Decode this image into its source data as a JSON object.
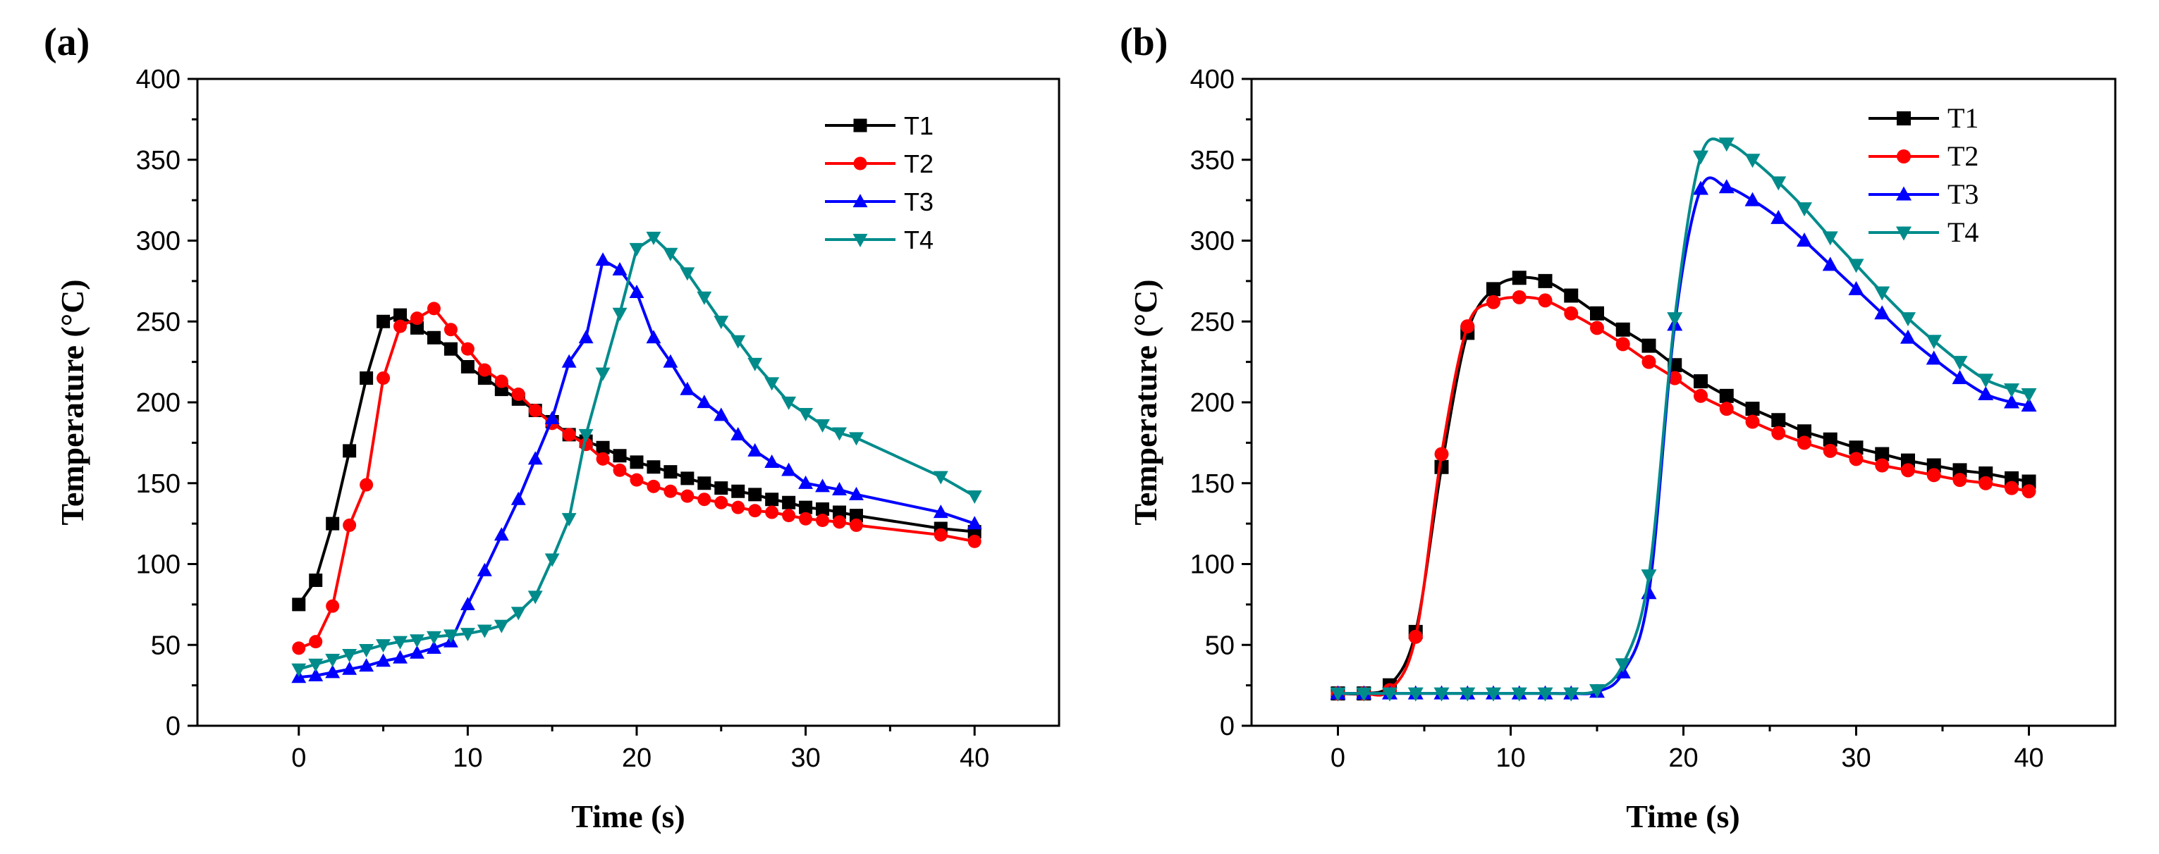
{
  "chart_data": [
    {
      "type": "line",
      "panel": "(a)",
      "xlabel": "Time (s)",
      "ylabel": "Temperature (°C)",
      "xlim": [
        -6,
        45
      ],
      "ylim": [
        0,
        400
      ],
      "xticks": [
        0,
        10,
        20,
        30,
        40
      ],
      "yticks": [
        0,
        50,
        100,
        150,
        200,
        250,
        300,
        350,
        400
      ],
      "legend": "top-right",
      "series": [
        {
          "name": "T1",
          "color": "#000000",
          "marker": "square",
          "x": [
            0,
            1,
            2,
            3,
            4,
            5,
            6,
            7,
            8,
            9,
            10,
            11,
            12,
            13,
            14,
            15,
            16,
            17,
            18,
            19,
            20,
            21,
            22,
            23,
            24,
            25,
            26,
            27,
            28,
            29,
            30,
            31,
            32,
            33,
            38,
            40
          ],
          "y": [
            75,
            90,
            125,
            170,
            215,
            250,
            254,
            246,
            240,
            233,
            222,
            215,
            208,
            202,
            195,
            188,
            180,
            176,
            172,
            167,
            163,
            160,
            157,
            153,
            150,
            147,
            145,
            143,
            140,
            138,
            135,
            134,
            132,
            130,
            122,
            120
          ]
        },
        {
          "name": "T2",
          "color": "#ff0000",
          "marker": "circle",
          "x": [
            0,
            1,
            2,
            3,
            4,
            5,
            6,
            7,
            8,
            9,
            10,
            11,
            12,
            13,
            14,
            15,
            16,
            17,
            18,
            19,
            20,
            21,
            22,
            23,
            24,
            25,
            26,
            27,
            28,
            29,
            30,
            31,
            32,
            33,
            38,
            40
          ],
          "y": [
            48,
            52,
            74,
            124,
            149,
            215,
            247,
            252,
            258,
            245,
            233,
            220,
            213,
            205,
            195,
            187,
            180,
            174,
            165,
            158,
            152,
            148,
            145,
            142,
            140,
            138,
            135,
            133,
            132,
            130,
            128,
            127,
            126,
            124,
            118,
            114
          ]
        },
        {
          "name": "T3",
          "color": "#0000ff",
          "marker": "triangle-up",
          "x": [
            0,
            1,
            2,
            3,
            4,
            5,
            6,
            7,
            8,
            9,
            10,
            11,
            12,
            13,
            14,
            15,
            16,
            17,
            18,
            19,
            20,
            21,
            22,
            23,
            24,
            25,
            26,
            27,
            28,
            29,
            30,
            31,
            32,
            33,
            38,
            40
          ],
          "y": [
            30,
            31,
            33,
            35,
            37,
            40,
            42,
            45,
            48,
            52,
            75,
            96,
            118,
            140,
            165,
            190,
            225,
            240,
            288,
            282,
            268,
            240,
            225,
            208,
            200,
            192,
            180,
            170,
            163,
            158,
            150,
            148,
            146,
            143,
            132,
            125
          ]
        },
        {
          "name": "T4",
          "color": "#008b8b",
          "marker": "triangle-down",
          "x": [
            0,
            1,
            2,
            3,
            4,
            5,
            6,
            7,
            8,
            9,
            10,
            11,
            12,
            13,
            14,
            15,
            16,
            17,
            18,
            19,
            20,
            21,
            22,
            23,
            24,
            25,
            26,
            27,
            28,
            29,
            30,
            31,
            32,
            33,
            38,
            40
          ],
          "y": [
            35,
            38,
            41,
            44,
            47,
            50,
            52,
            53,
            55,
            56,
            57,
            59,
            62,
            70,
            80,
            103,
            128,
            180,
            218,
            255,
            295,
            302,
            292,
            280,
            265,
            250,
            238,
            224,
            212,
            200,
            193,
            186,
            181,
            178,
            154,
            142
          ]
        }
      ]
    },
    {
      "type": "line",
      "panel": "(b)",
      "xlabel": "Time (s)",
      "ylabel": "Temperature (°C)",
      "xlim": [
        -5,
        45
      ],
      "ylim": [
        0,
        400
      ],
      "xticks": [
        0,
        10,
        20,
        30,
        40
      ],
      "yticks": [
        0,
        50,
        100,
        150,
        200,
        250,
        300,
        350,
        400
      ],
      "legend": "top-right",
      "series": [
        {
          "name": "T1",
          "color": "#000000",
          "marker": "square",
          "x": [
            0,
            1.5,
            3,
            4.5,
            6,
            7.5,
            9,
            10.5,
            12,
            13.5,
            15,
            16.5,
            18,
            19.5,
            21,
            22.5,
            24,
            25.5,
            27,
            28.5,
            30,
            31.5,
            33,
            34.5,
            36,
            37.5,
            39,
            40
          ],
          "y": [
            20,
            20,
            25,
            58,
            160,
            243,
            270,
            277,
            275,
            266,
            255,
            245,
            235,
            223,
            213,
            204,
            196,
            189,
            182,
            177,
            172,
            168,
            164,
            161,
            158,
            156,
            153,
            151
          ]
        },
        {
          "name": "T2",
          "color": "#ff0000",
          "marker": "circle",
          "x": [
            0,
            1.5,
            3,
            4.5,
            6,
            7.5,
            9,
            10.5,
            12,
            13.5,
            15,
            16.5,
            18,
            19.5,
            21,
            22.5,
            24,
            25.5,
            27,
            28.5,
            30,
            31.5,
            33,
            34.5,
            36,
            37.5,
            39,
            40
          ],
          "y": [
            20,
            20,
            22,
            55,
            168,
            247,
            262,
            265,
            263,
            255,
            246,
            236,
            225,
            215,
            204,
            196,
            188,
            181,
            175,
            170,
            165,
            161,
            158,
            155,
            152,
            150,
            147,
            145
          ]
        },
        {
          "name": "T3",
          "color": "#0000ff",
          "marker": "triangle-up",
          "x": [
            0,
            1.5,
            3,
            4.5,
            6,
            7.5,
            9,
            10.5,
            12,
            13.5,
            15,
            16.5,
            18,
            19.5,
            21,
            22.5,
            24,
            25.5,
            27,
            28.5,
            30,
            31.5,
            33,
            34.5,
            36,
            37.5,
            39,
            40
          ],
          "y": [
            20,
            20,
            20,
            20,
            20,
            20,
            20,
            20,
            20,
            20,
            21,
            33,
            82,
            248,
            332,
            333,
            325,
            314,
            300,
            285,
            270,
            255,
            240,
            227,
            215,
            205,
            200,
            198
          ]
        },
        {
          "name": "T4",
          "color": "#008b8b",
          "marker": "triangle-down",
          "x": [
            0,
            1.5,
            3,
            4.5,
            6,
            7.5,
            9,
            10.5,
            12,
            13.5,
            15,
            16.5,
            18,
            19.5,
            21,
            22.5,
            24,
            25.5,
            27,
            28.5,
            30,
            31.5,
            33,
            34.5,
            36,
            37.5,
            39,
            40
          ],
          "y": [
            20,
            20,
            20,
            20,
            20,
            20,
            20,
            20,
            20,
            20,
            22,
            38,
            93,
            252,
            352,
            360,
            350,
            336,
            320,
            302,
            285,
            268,
            252,
            238,
            225,
            214,
            208,
            205
          ]
        }
      ]
    }
  ]
}
